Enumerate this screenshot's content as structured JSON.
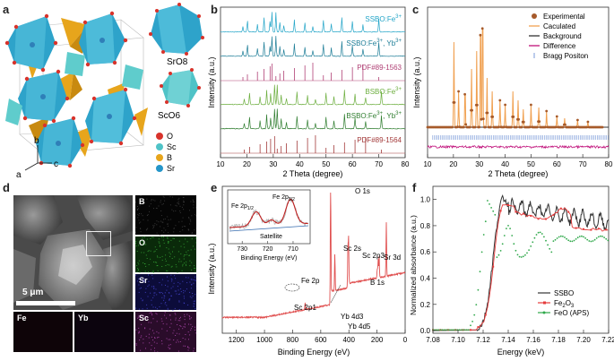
{
  "panels": {
    "a": {
      "label": "a",
      "polyhedra": [
        "SrO8",
        "ScO6"
      ],
      "legend": [
        {
          "name": "O",
          "color": "#d8332b"
        },
        {
          "name": "Sc",
          "color": "#4fc3c7"
        },
        {
          "name": "B",
          "color": "#e7a51c"
        },
        {
          "name": "Sr",
          "color": "#2596c9"
        }
      ],
      "axes": [
        "b",
        "a",
        "c"
      ]
    },
    "b": {
      "label": "b",
      "ylabel": "Intensity (a.u.)",
      "xlabel": "2 Theta (degree)",
      "xticks": [
        "10",
        "20",
        "30",
        "40",
        "50",
        "60",
        "70",
        "80"
      ],
      "traces": [
        {
          "name": "SSBO:Fe3+",
          "text": "SSBO:Fe",
          "sup": "3+",
          "color": "#23a5c8"
        },
        {
          "name": "SSBO:Fe3+, Yb3+",
          "text": "SSBO:Fe",
          "sup": "3+",
          "text2": ", Yb",
          "sup2": "3+",
          "color": "#1d7d97"
        },
        {
          "name": "PDF#89-1563",
          "text": "PDF#89-1563",
          "color": "#b04075"
        },
        {
          "name": "BSBO:Fe3+",
          "text": "BSBO:Fe",
          "sup": "3+",
          "color": "#6cae3e"
        },
        {
          "name": "BSBO:Fe3+, Yb3+",
          "text": "BSBO:Fe",
          "sup": "3+",
          "text2": ", Yb",
          "sup2": "3+",
          "color": "#2f7d2f"
        },
        {
          "name": "PDF#89-1564",
          "text": "PDF#89-1564",
          "color": "#a33a3a"
        }
      ]
    },
    "c": {
      "label": "c",
      "ylabel": "Intensity (a.u.)",
      "xlabel": "2 Theta (degree)",
      "xticks": [
        "10",
        "20",
        "30",
        "40",
        "50",
        "60",
        "70",
        "80"
      ],
      "legend": [
        {
          "name": "Experimental",
          "color": "#a65a2a"
        },
        {
          "name": "Caculated",
          "color": "#f0a050"
        },
        {
          "name": "Background",
          "color": "#333333"
        },
        {
          "name": "Difference",
          "color": "#c0107a"
        },
        {
          "name": "Bragg Positon",
          "color": "#7a9ad8"
        }
      ]
    },
    "d": {
      "label": "d",
      "scalebar": "5 μm",
      "maps": [
        {
          "name": "B",
          "color": "#101010"
        },
        {
          "name": "O",
          "color": "#0e5a0e"
        },
        {
          "name": "Sr",
          "color": "#1a1a70"
        },
        {
          "name": "Sc",
          "color": "#5a1a5a"
        },
        {
          "name": "Fe",
          "color": "#2a0a1a"
        },
        {
          "name": "Yb",
          "color": "#1a0a20"
        }
      ]
    },
    "e": {
      "label": "e",
      "ylabel": "Intensity (a.u.)",
      "xlabel": "Binding Energy (eV)",
      "xticks": [
        "1200",
        "1000",
        "800",
        "600",
        "400",
        "200",
        "0"
      ],
      "peaks": [
        "O 1s",
        "Sc 2s",
        "Sc 2p3",
        "Fe 2p",
        "Sc 2p1",
        "Yb 4d3",
        "Yb 4d5",
        "B 1s",
        "Sr 3d"
      ],
      "inset": {
        "xlabel": "Binding Energy (eV)",
        "xticks": [
          "730",
          "720",
          "710"
        ],
        "labels": [
          "Fe 2p",
          "Fe 2p",
          "Satellite"
        ],
        "subs": [
          "1/2",
          "3/2"
        ]
      }
    },
    "f": {
      "label": "f",
      "ylabel": "Normalized absorbance (a.u.)",
      "xlabel": "Energy (keV)",
      "xticks": [
        "7.08",
        "7.10",
        "7.12",
        "7.14",
        "7.16",
        "7.18",
        "7.20",
        "7.22"
      ],
      "yticks": [
        "0.0",
        "0.2",
        "0.4",
        "0.6",
        "0.8",
        "1.0"
      ],
      "legend": [
        {
          "name": "SSBO",
          "color": "#333333"
        },
        {
          "name": "Fe2O3",
          "text": "Fe",
          "sub": "2",
          "text2": "O",
          "sub2": "3",
          "color": "#e53b3b"
        },
        {
          "name": "FeO (APS)",
          "color": "#2fa84a"
        }
      ]
    }
  }
}
